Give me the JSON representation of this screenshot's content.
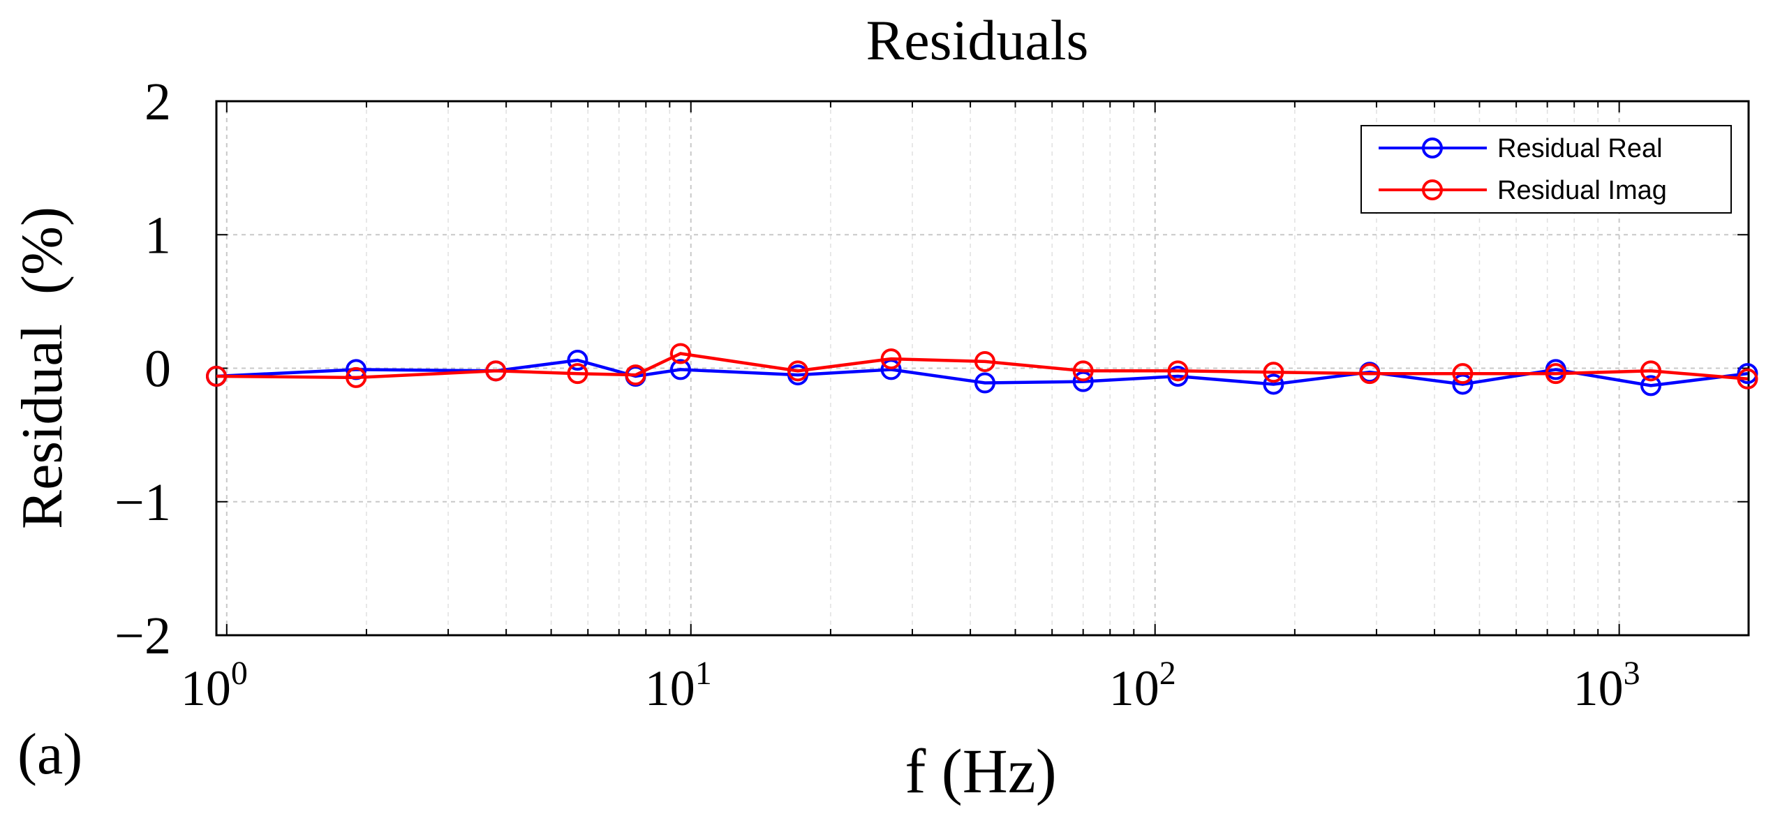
{
  "chart_data": {
    "type": "line",
    "title": "Residuals",
    "xlabel": "f (Hz)",
    "ylabel": "Residual  (%)",
    "panel_label": "(a)",
    "x_scale": "log",
    "xlim": [
      0.95,
      1900
    ],
    "ylim": [
      -2,
      2
    ],
    "grid": true,
    "legend_position": "top-right",
    "x_ticks": [
      {
        "value": 1,
        "base": "10",
        "exp": "0"
      },
      {
        "value": 10,
        "base": "10",
        "exp": "1"
      },
      {
        "value": 100,
        "base": "10",
        "exp": "2"
      },
      {
        "value": 1000,
        "base": "10",
        "exp": "3"
      }
    ],
    "y_ticks": [
      {
        "value": 2,
        "label": "2"
      },
      {
        "value": 1,
        "label": "1"
      },
      {
        "value": 0,
        "label": "0"
      },
      {
        "value": -1,
        "label": "−1"
      },
      {
        "value": -2,
        "label": "−2"
      }
    ],
    "x": [
      0.95,
      1.9,
      3.8,
      5.7,
      7.6,
      9.5,
      17,
      27,
      43,
      70,
      112,
      180,
      290,
      460,
      730,
      1170,
      1890
    ],
    "series": [
      {
        "name": "Residual Real",
        "color": "#0000ff",
        "values": [
          -0.06,
          -0.01,
          -0.02,
          0.06,
          -0.06,
          -0.01,
          -0.05,
          -0.01,
          -0.11,
          -0.1,
          -0.06,
          -0.12,
          -0.03,
          -0.12,
          -0.01,
          -0.13,
          -0.04
        ]
      },
      {
        "name": "Residual Imag",
        "color": "#ff0000",
        "values": [
          -0.06,
          -0.07,
          -0.02,
          -0.04,
          -0.05,
          0.11,
          -0.02,
          0.07,
          0.05,
          -0.02,
          -0.02,
          -0.03,
          -0.04,
          -0.04,
          -0.04,
          -0.02,
          -0.08
        ]
      }
    ]
  }
}
